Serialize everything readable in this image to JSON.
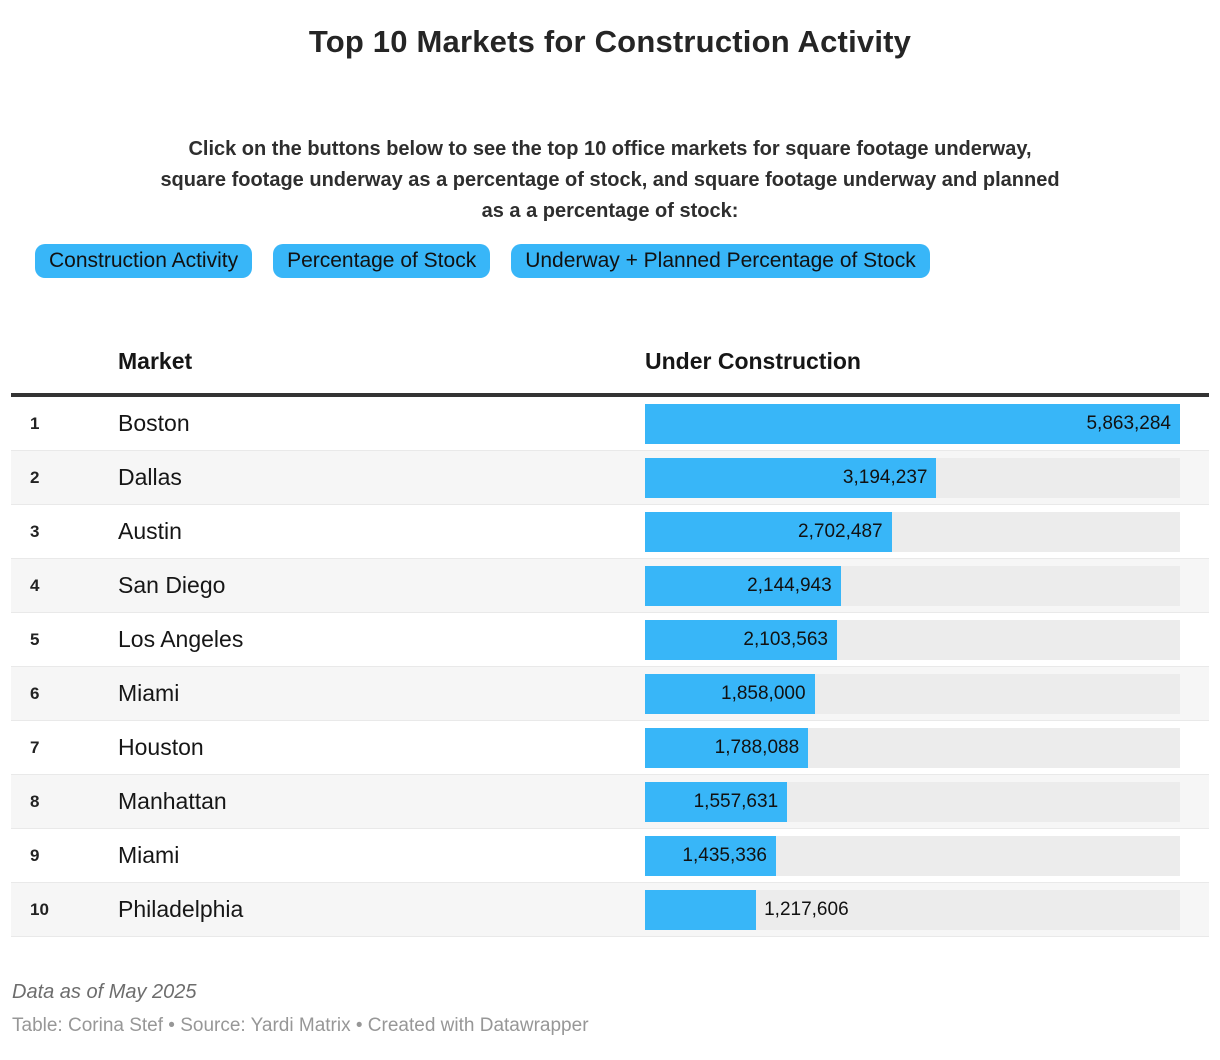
{
  "header": {
    "title": "Top 10 Markets for Construction Activity"
  },
  "description": {
    "lines": [
      "Click on the buttons below to see the top 10 office markets for square footage underway,",
      "square footage underway as a percentage of stock, and square footage underway and planned",
      "as a a percentage of stock:"
    ]
  },
  "buttons": [
    {
      "label": "Construction Activity"
    },
    {
      "label": "Percentage of Stock"
    },
    {
      "label": "Underway + Planned Percentage of Stock"
    }
  ],
  "table": {
    "columns": [
      {
        "label": "Market"
      },
      {
        "label": "Under Construction"
      }
    ],
    "rows": [
      {
        "rank": "1",
        "market": "Boston",
        "value": "5,863,284"
      },
      {
        "rank": "2",
        "market": "Dallas",
        "value": "3,194,237"
      },
      {
        "rank": "3",
        "market": "Austin",
        "value": "2,702,487"
      },
      {
        "rank": "4",
        "market": "San Diego",
        "value": "2,144,943"
      },
      {
        "rank": "5",
        "market": "Los Angeles",
        "value": "2,103,563"
      },
      {
        "rank": "6",
        "market": "Miami",
        "value": "1,858,000"
      },
      {
        "rank": "7",
        "market": "Houston",
        "value": "1,788,088"
      },
      {
        "rank": "8",
        "market": "Manhattan",
        "value": "1,557,631"
      },
      {
        "rank": "9",
        "market": "Miami",
        "value": "1,435,336"
      },
      {
        "rank": "10",
        "market": "Philadelphia",
        "value": "1,217,606"
      }
    ]
  },
  "chart_data": {
    "type": "bar",
    "orientation": "horizontal",
    "title": "Top 10 Markets for Construction Activity",
    "series_label": "Under Construction",
    "categories": [
      "Boston",
      "Dallas",
      "Austin",
      "San Diego",
      "Los Angeles",
      "Miami",
      "Houston",
      "Manhattan",
      "Miami",
      "Philadelphia"
    ],
    "values": [
      5863284,
      3194237,
      2702487,
      2144943,
      2103563,
      1858000,
      1788088,
      1557631,
      1435336,
      1217606
    ],
    "value_labels": [
      "5,863,284",
      "3,194,237",
      "2,702,487",
      "2,144,943",
      "2,103,563",
      "1,858,000",
      "1,788,088",
      "1,557,631",
      "1,435,336",
      "1,217,606"
    ],
    "xlim": [
      0,
      5863284
    ],
    "grid": false,
    "legend_position": "none",
    "bar_color": "#38b6f8",
    "track_color": "#ececec"
  },
  "footer": {
    "note": "Data as of May 2025",
    "credits": "Table: Corina Stef • Source: Yardi Matrix • Created with Datawrapper"
  },
  "colors": {
    "accent": "#38b6f8",
    "track": "#ececec",
    "row_alt": "#f6f6f6",
    "header_rule": "#333333"
  }
}
